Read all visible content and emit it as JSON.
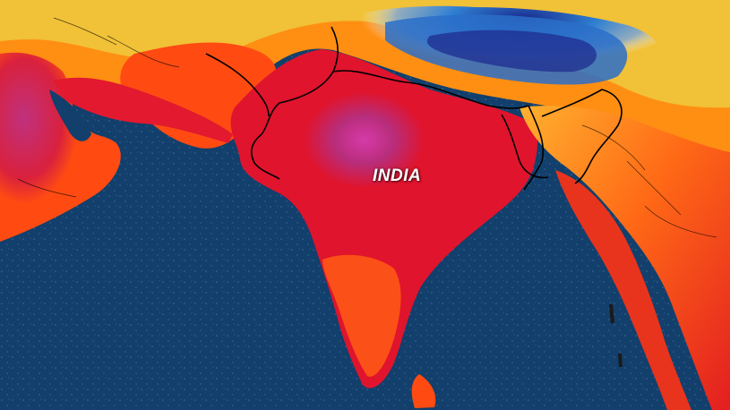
{
  "map": {
    "type": "temperature-heatmap",
    "region": "South Asia",
    "labels": {
      "country": "INDIA"
    },
    "colors": {
      "ocean": "#123f6b",
      "ocean_dots": "#5f86ad",
      "hottest": "#d63aa8",
      "very_hot": "#e0142d",
      "hot": "#ff4b12",
      "warm": "#ff8f12",
      "mild": "#f0c43a",
      "cool": "#9fb65a",
      "cold": "#2f85d8",
      "coldest": "#1f2c8f",
      "borders": "#000000"
    }
  }
}
